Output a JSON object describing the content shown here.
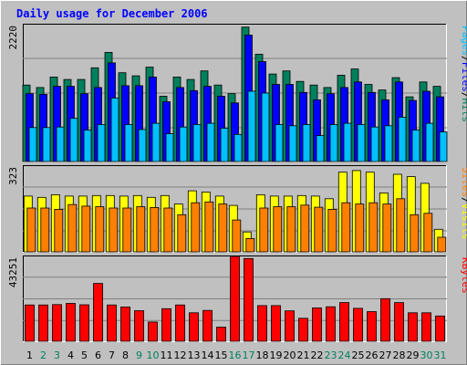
{
  "chart_data": {
    "type": "bar",
    "title": "Daily usage for December 2006",
    "x": [
      "1",
      "2",
      "3",
      "4",
      "5",
      "6",
      "7",
      "8",
      "9",
      "10",
      "11",
      "12",
      "13",
      "14",
      "15",
      "16",
      "17",
      "18",
      "19",
      "20",
      "21",
      "22",
      "23",
      "24",
      "25",
      "26",
      "27",
      "28",
      "29",
      "30",
      "31"
    ],
    "weekend_days": [
      "2",
      "3",
      "9",
      "10",
      "16",
      "17",
      "23",
      "24",
      "30",
      "31"
    ],
    "panels": [
      {
        "name": "hits-files-pages",
        "max_label": "2220",
        "ymax": 2220,
        "legend": [
          "Pages",
          "Files",
          "Hits"
        ],
        "series": [
          {
            "name": "Hits",
            "color": "#00805C",
            "values": [
              1240,
              1200,
              1370,
              1330,
              1330,
              1520,
              1770,
              1440,
              1390,
              1530,
              1060,
              1370,
              1330,
              1470,
              1240,
              1100,
              2180,
              1740,
              1420,
              1470,
              1300,
              1240,
              1200,
              1400,
              1500,
              1250,
              1160,
              1360,
              1050,
              1290,
              1220
            ]
          },
          {
            "name": "Files",
            "color": "#0000FF",
            "values": [
              1100,
              1090,
              1220,
              1220,
              1100,
              1200,
              1600,
              1230,
              1230,
              1370,
              970,
              1200,
              1150,
              1220,
              1060,
              950,
              2050,
              1620,
              1250,
              1250,
              1120,
              1000,
              1100,
              1200,
              1290,
              1120,
              1000,
              1290,
              990,
              1140,
              1050
            ]
          },
          {
            "name": "Pages",
            "color": "#00C0FF",
            "values": [
              550,
              550,
              560,
              700,
              510,
              600,
              1030,
              600,
              520,
              620,
              450,
              560,
              600,
              620,
              540,
              440,
              1140,
              1110,
              600,
              580,
              600,
              420,
              600,
              620,
              600,
              560,
              580,
              720,
              510,
              620,
              480
            ]
          }
        ]
      },
      {
        "name": "visits-sites",
        "max_label": "323",
        "ymax": 323,
        "legend": [
          "Sites",
          "Visits"
        ],
        "series": [
          {
            "name": "Visits",
            "color": "#FFFF00",
            "values": [
              210,
              205,
              215,
              210,
              210,
              212,
              212,
              210,
              212,
              205,
              212,
              180,
              230,
              225,
              210,
              175,
              75,
              215,
              210,
              210,
              212,
              210,
              200,
              300,
              306,
              300,
              222,
              292,
              283,
              258,
              85
            ]
          },
          {
            "name": "Sites",
            "color": "#FF8000",
            "values": [
              165,
              165,
              160,
              178,
              172,
              170,
              165,
              165,
              170,
              167,
              165,
              140,
              185,
              188,
              180,
              120,
              50,
              165,
              170,
              170,
              176,
              168,
              160,
              185,
              180,
              185,
              180,
              200,
              140,
              145,
              55
            ]
          }
        ]
      },
      {
        "name": "kbytes",
        "max_label": "43251",
        "ymax": 43251,
        "legend": [
          "KBytes"
        ],
        "series": [
          {
            "name": "KBytes",
            "color": "#FF0000",
            "values": [
              18500,
              18500,
              18700,
              19300,
              18600,
              29500,
              18500,
              17500,
              15600,
              9800,
              16600,
              18500,
              14500,
              15700,
              7200,
              44200,
              42200,
              18200,
              18200,
              15500,
              11700,
              17000,
              17600,
              19700,
              16800,
              15100,
              21700,
              19700,
              14500,
              14500,
              12900
            ]
          }
        ]
      }
    ],
    "colors": {
      "page_bg": "#C0C0C0",
      "plot_bg": "#C0C0C0",
      "title": "#0000FF",
      "weekday_tick": "#000000",
      "weekend_tick": "#00805C",
      "grid": "#808080"
    }
  }
}
